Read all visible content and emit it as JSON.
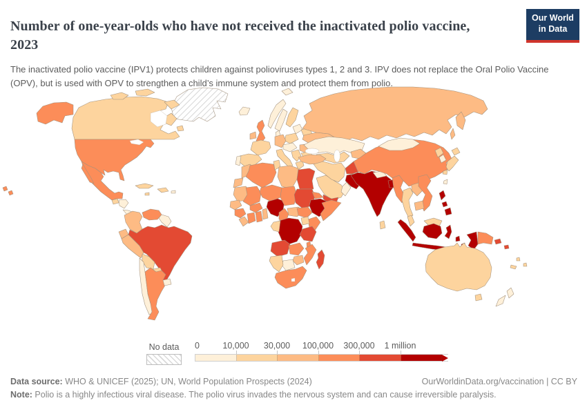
{
  "header": {
    "title": "Number of one-year-olds who have not received the inactivated polio vaccine, 2023",
    "subtitle": "The inactivated polio vaccine (IPV1) protects children against polioviruses types 1, 2 and 3. IPV does not replace the Oral Polio Vaccine (OPV), but is used with OPV to strengthen a child’s immune system and protect them from polio.",
    "logo": {
      "line1": "Our World",
      "line2": "in Data",
      "bg": "#1d3d63",
      "accent": "#d0342c"
    }
  },
  "legend": {
    "no_data_label": "No data",
    "ticks": [
      "0",
      "10,000",
      "30,000",
      "100,000",
      "300,000",
      "1 million"
    ],
    "bin_colors": [
      "#fef0d9",
      "#fdd49e",
      "#fdbb84",
      "#fc8d59",
      "#e34a33",
      "#b30000"
    ]
  },
  "footer": {
    "source_label": "Data source:",
    "source_text": " WHO & UNICEF (2025); UN, World Population Prospects (2024)",
    "link_text": "OurWorldinData.org/vaccination | CC BY",
    "note_label": "Note:",
    "note_text": " Polio is a highly infectious viral disease. The polio virus invades the nervous system and can cause irreversible paralysis."
  },
  "chart_data": {
    "type": "choropleth",
    "title": "Number of one-year-olds who have not received the inactivated polio vaccine",
    "year": "2023",
    "legend_ticks": [
      "0",
      "10,000",
      "30,000",
      "100,000",
      "300,000",
      "1 million"
    ],
    "bin_labels": [
      "0–10,000",
      "10,000–30,000",
      "30,000–100,000",
      "100,000–300,000",
      "300,000–1 million",
      "1 million+"
    ],
    "bin_colors": [
      "#fef0d9",
      "#fdd49e",
      "#fdbb84",
      "#fc8d59",
      "#e34a33",
      "#b30000"
    ],
    "no_data_style": "hatched",
    "countries": {
      "Greenland": "nodata",
      "Canada": 1,
      "United States": 3,
      "Mexico": 3,
      "Guatemala": 1,
      "Honduras-Nicaragua": 0,
      "Costa Rica-Panama": 0,
      "Cuba": 1,
      "Hispaniola": 1,
      "Jamaica": 1,
      "Puerto Rico": 0,
      "Colombia": 2,
      "Venezuela": 3,
      "Guyanas": 0,
      "Ecuador": 2,
      "Peru": 2,
      "Brazil": 4,
      "Bolivia": 1,
      "Paraguay": 1,
      "Chile": 0,
      "Argentina": 3,
      "Uruguay": 0,
      "Iceland": 0,
      "Ireland": 2,
      "United Kingdom": 3,
      "Norway": 0,
      "Sweden": 0,
      "Finland": 1,
      "Denmark": 0,
      "Baltic states": 0,
      "France": 1,
      "Spain": 1,
      "Portugal": 0,
      "Germany": 2,
      "Poland": 1,
      "Central Europe": 0,
      "Italy": 1,
      "Balkans": 1,
      "Greece": 1,
      "Romania": 2,
      "Bulgaria": 1,
      "Belarus": 1,
      "Ukraine": 2,
      "Russia": 2,
      "Turkey": 2,
      "Syria": 3,
      "Iraq": 2,
      "Saudi Arabia": 1,
      "Yemen": 4,
      "Oman": 0,
      "Iran": 1,
      "Afghanistan": 4,
      "Pakistan": 5,
      "Kazakhstan": 0,
      "Uzbekistan-Turkmenistan": 1,
      "Kyrgyzstan-Tajikistan": 2,
      "India": 5,
      "Nepal": 0,
      "Bangladesh": 5,
      "Sri Lanka": 1,
      "Myanmar": 3,
      "Thailand": 1,
      "Laos": 2,
      "Cambodia": 2,
      "Vietnam": 3,
      "Malaysia": 1,
      "China": 3,
      "Mongolia": 0,
      "North Korea": 1,
      "South Korea": 0,
      "Japan": 1,
      "Taiwan": 0,
      "Philippines": 5,
      "Indonesia": 5,
      "Papua New Guinea": 3,
      "Solomon Islands": 4,
      "Vanuatu-Fiji": 1,
      "New Caledonia": 1,
      "Australia": 1,
      "New Zealand": 0,
      "Morocco": 2,
      "Western Sahara": 2,
      "Algeria": 3,
      "Tunisia": 1,
      "Libya": 2,
      "Egypt": 4,
      "Mauritania": 2,
      "Senegal": 2,
      "Guinea": 3,
      "Sierra Leone-Liberia": 2,
      "Mali": 3,
      "Burkina Faso": 3,
      "Ivory Coast": 3,
      "Ghana": 3,
      "Togo-Benin": 2,
      "Niger": 3,
      "Nigeria": 5,
      "Chad": 3,
      "Cameroon": 3,
      "Central African Republic": 2,
      "Sudan": 4,
      "South Sudan": 3,
      "Eritrea": 3,
      "Ethiopia": 5,
      "Somalia": 3,
      "Uganda": 1,
      "Kenya": 3,
      "DR Congo": 5,
      "Congo-Gabon": 1,
      "Tanzania": 4,
      "Angola": 4,
      "Zambia": 3,
      "Malawi": 3,
      "Mozambique": 3,
      "Zimbabwe": 2,
      "Botswana": 0,
      "Namibia": 1,
      "South Africa": 3,
      "Madagascar": 4
    }
  }
}
